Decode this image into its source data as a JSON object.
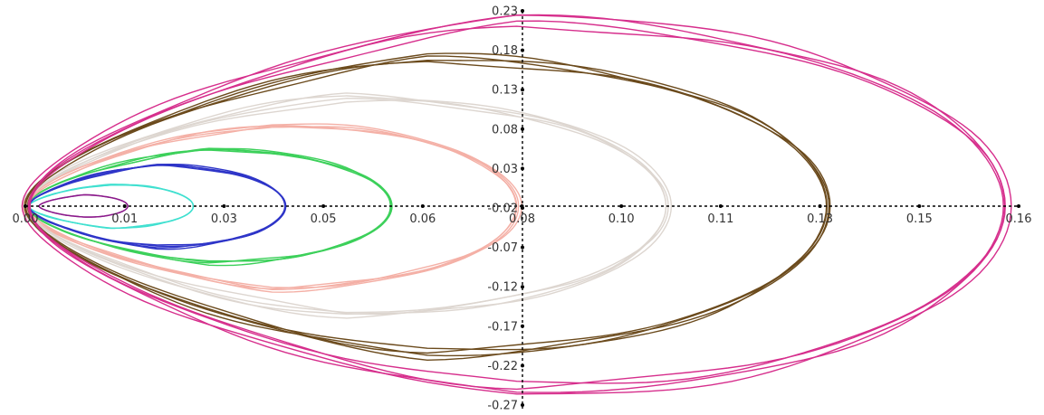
{
  "chart_data": {
    "type": "line",
    "title": "",
    "xlabel": "",
    "ylabel": "",
    "xlim": [
      0.0,
      0.16
    ],
    "ylim": [
      -0.27,
      0.23
    ],
    "grid": false,
    "x_ticks": [
      "0.00",
      "0.01",
      "0.03",
      "0.05",
      "0.06",
      "0.08",
      "0.10",
      "0.11",
      "0.13",
      "0.15",
      "0.16"
    ],
    "y_ticks": [
      "0.23",
      "0.18",
      "0.13",
      "0.08",
      "0.03",
      "-0.02",
      "-0.07",
      "-0.12",
      "-0.17",
      "-0.22",
      "-0.27"
    ],
    "series": [
      {
        "color": "#8B1A8B",
        "x_max": 0.0165,
        "y_half": 0.014,
        "x_lo": 0.0022,
        "loops": 2
      },
      {
        "color": "#40E0D0",
        "x_max": 0.027,
        "y_half": 0.028,
        "x_lo": 0.0006,
        "loops": 3
      },
      {
        "color": "#2E35C8",
        "x_max": 0.042,
        "y_half": 0.052,
        "x_lo": 0.0004,
        "loops": 4
      },
      {
        "color": "#3CD05A",
        "x_max": 0.059,
        "y_half": 0.072,
        "x_lo": 0.0002,
        "loops": 4
      },
      {
        "color": "#F4B0A6",
        "x_max": 0.0795,
        "y_half": 0.104,
        "x_lo": 0.0,
        "loops": 4
      },
      {
        "color": "#DDD6D0",
        "x_max": 0.1035,
        "y_half": 0.138,
        "x_lo": 0.0,
        "loops": 4
      },
      {
        "color": "#6B4A1C",
        "x_max": 0.1295,
        "y_half": 0.186,
        "x_lo": 0.0,
        "loops": 4
      },
      {
        "color": "#D62E8C",
        "x_max": 0.1585,
        "y_half": 0.235,
        "x_lo": -0.0002,
        "loops": 4
      }
    ]
  }
}
